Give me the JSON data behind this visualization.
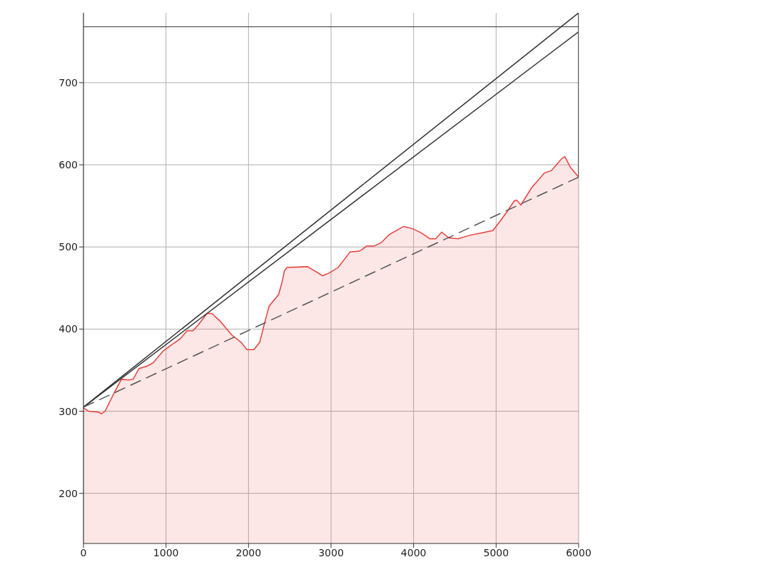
{
  "chart_data": {
    "type": "area",
    "xlim": [
      0,
      6000
    ],
    "ylim": [
      139,
      785
    ],
    "xticks": [
      0,
      1000,
      2000,
      3000,
      4000,
      5000,
      6000
    ],
    "yticks": [
      200,
      300,
      400,
      500,
      600,
      700
    ],
    "grid": true,
    "series": [
      {
        "color": "#e8413c",
        "x": [
          0,
          62,
          176,
          219,
          261,
          375,
          460,
          545,
          602,
          673,
          773,
          844,
          972,
          1057,
          1170,
          1256,
          1327,
          1398,
          1497,
          1554,
          1653,
          1795,
          1909,
          1980,
          2065,
          2136,
          2193,
          2250,
          2364,
          2406,
          2435,
          2467,
          2712,
          2798,
          2899,
          2971,
          3086,
          3231,
          3346,
          3432,
          3519,
          3605,
          3706,
          3793,
          3879,
          3994,
          4095,
          4196,
          4268,
          4340,
          4427,
          4542,
          4671,
          4816,
          4960,
          5046,
          5133,
          5219,
          5250,
          5300,
          5430,
          5585,
          5670,
          5790,
          5833,
          5900,
          6000
        ],
        "values": [
          304,
          300,
          299,
          297,
          300,
          323,
          339,
          338,
          339,
          352,
          355,
          359,
          374,
          380,
          388,
          398,
          398,
          406,
          419,
          419,
          410,
          393,
          384,
          375,
          375,
          384,
          407,
          428,
          442,
          457,
          471,
          475,
          476,
          471,
          465,
          468,
          475,
          494,
          495,
          501,
          501,
          505,
          515,
          520,
          525,
          522,
          517,
          510,
          510,
          518,
          511,
          510,
          514,
          517,
          520,
          531,
          543,
          556,
          557,
          551,
          572,
          590,
          593,
          607,
          610,
          597,
          585
        ]
      },
      {
        "type": "line",
        "color": "#333333",
        "x": [
          0,
          6000,
          6000
        ],
        "values": [
          305,
          785,
          585
        ]
      },
      {
        "type": "line",
        "color": "#333333",
        "x": [
          0,
          6000
        ],
        "values": [
          305,
          762
        ]
      },
      {
        "type": "line",
        "color": "#555555",
        "line_style": "dashed",
        "x": [
          0,
          3000,
          6000
        ],
        "values": [
          305,
          445,
          585
        ]
      }
    ],
    "ref_lines": [
      {
        "axis": "y",
        "value": 768,
        "color": "#333333"
      }
    ]
  }
}
